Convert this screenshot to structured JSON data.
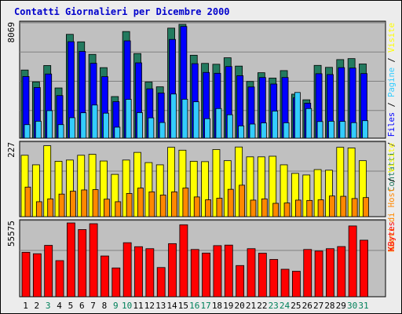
{
  "colors": {
    "page_bg": "#ececec",
    "panel_bg": "#c0c0c0",
    "grid": "#808080",
    "title": "#0000cc",
    "visits": "#237a5f",
    "pages": "#0000ff",
    "files": "#33ccff",
    "hosts": "#ffff00",
    "hosts_new": "#ff8800",
    "kbytes": "#ff0000",
    "weekend_day": "#00805a",
    "weekday": "#000000"
  },
  "chart_data": {
    "type": "bar",
    "title": "Contatti Giornalieri per Dicembre 2000",
    "categories": [
      "1",
      "2",
      "3",
      "4",
      "5",
      "6",
      "7",
      "8",
      "9",
      "10",
      "11",
      "12",
      "13",
      "14",
      "15",
      "16",
      "17",
      "18",
      "19",
      "20",
      "21",
      "22",
      "23",
      "24",
      "25",
      "26",
      "27",
      "28",
      "29",
      "30",
      "31"
    ],
    "weekend_days": [
      3,
      9,
      10,
      16,
      17,
      23,
      24,
      30,
      31
    ],
    "panels": [
      {
        "id": "hits",
        "max_label": "8069",
        "ymax": 8069,
        "right_label": [
          {
            "text": "Contatti",
            "color": "#237a5f"
          },
          {
            "text": " / ",
            "color": "#000000"
          },
          {
            "text": "Files",
            "color": "#0000ff"
          },
          {
            "text": " / ",
            "color": "#000000"
          },
          {
            "text": "Pagine",
            "color": "#33ccff"
          },
          {
            "text": " / ",
            "color": "#000000"
          },
          {
            "text": "Visite",
            "color": "#ffff00"
          }
        ],
        "series": [
          {
            "name": "Contatti",
            "color": "#237a5f",
            "values": [
              4830,
              3990,
              5150,
              3560,
              7360,
              6830,
              5940,
              5000,
              2950,
              7560,
              6000,
              3980,
              3640,
              7800,
              8069,
              5880,
              5300,
              5240,
              5700,
              5110,
              4020,
              4640,
              4260,
              4790,
              3120,
              2720,
              5160,
              5020,
              5570,
              5640,
              5260
            ]
          },
          {
            "name": "Files",
            "color": "#0000ff",
            "values": [
              4370,
              3590,
              4550,
              3020,
              6840,
              6150,
              5310,
              4360,
              2590,
              6900,
              5340,
              3500,
              3200,
              7000,
              7920,
              5280,
              4660,
              4600,
              5080,
              4430,
              3630,
              4300,
              3840,
              4300,
              2860,
              2480,
              4570,
              4510,
              5000,
              4970,
              4580
            ]
          },
          {
            "name": "Pagine",
            "color": "#33ccff",
            "values": [
              960,
              1200,
              1950,
              960,
              1450,
              1800,
              2350,
              1770,
              780,
              2750,
              1810,
              1440,
              1110,
              3130,
              2760,
              2580,
              1380,
              2100,
              1660,
              870,
              1000,
              1080,
              1920,
              1090,
              3240,
              2100,
              1180,
              1200,
              1190,
              1100,
              1240
            ]
          }
        ]
      },
      {
        "id": "hosts",
        "max_label": "227",
        "ymax": 227,
        "right_label": [
          {
            "text": "Nuovi di Host",
            "color": "#ff8800"
          },
          {
            "text": " / ",
            "color": "#000000"
          },
          {
            "text": "Visite",
            "color": "#ffff00"
          }
        ],
        "series": [
          {
            "name": "Host",
            "color": "#ffff00",
            "values": [
              193,
              163,
              223,
              174,
              178,
              193,
              196,
              175,
              133,
              178,
              202,
              170,
              163,
              218,
              209,
              174,
              173,
              211,
              176,
              219,
              188,
              188,
              190,
              163,
              136,
              131,
              148,
              146,
              218,
              216,
              176
            ]
          },
          {
            "name": "Nuovi",
            "color": "#ff8800",
            "values": [
              93,
              47,
              56,
              71,
              80,
              84,
              85,
              55,
              47,
              73,
              90,
              78,
              68,
              78,
              90,
              62,
              53,
              58,
              86,
              99,
              52,
              56,
              42,
              43,
              52,
              51,
              53,
              65,
              64,
              57,
              60
            ]
          }
        ]
      },
      {
        "id": "kbytes",
        "max_label": "55575",
        "ymax": 55575,
        "right_label": [
          {
            "text": "KBytes",
            "color": "#ff0000"
          }
        ],
        "series": [
          {
            "name": "KBytes",
            "color": "#ff0000",
            "values": [
              33500,
              32400,
              38700,
              27200,
              55575,
              50600,
              55000,
              30700,
              21700,
              40700,
              37700,
              36200,
              22000,
              40000,
              54200,
              35600,
              32900,
              38500,
              38900,
              23500,
              36200,
              32800,
              28100,
              20700,
              19200,
              35600,
              34400,
              36200,
              37800,
              53300,
              42600
            ]
          }
        ]
      }
    ]
  }
}
